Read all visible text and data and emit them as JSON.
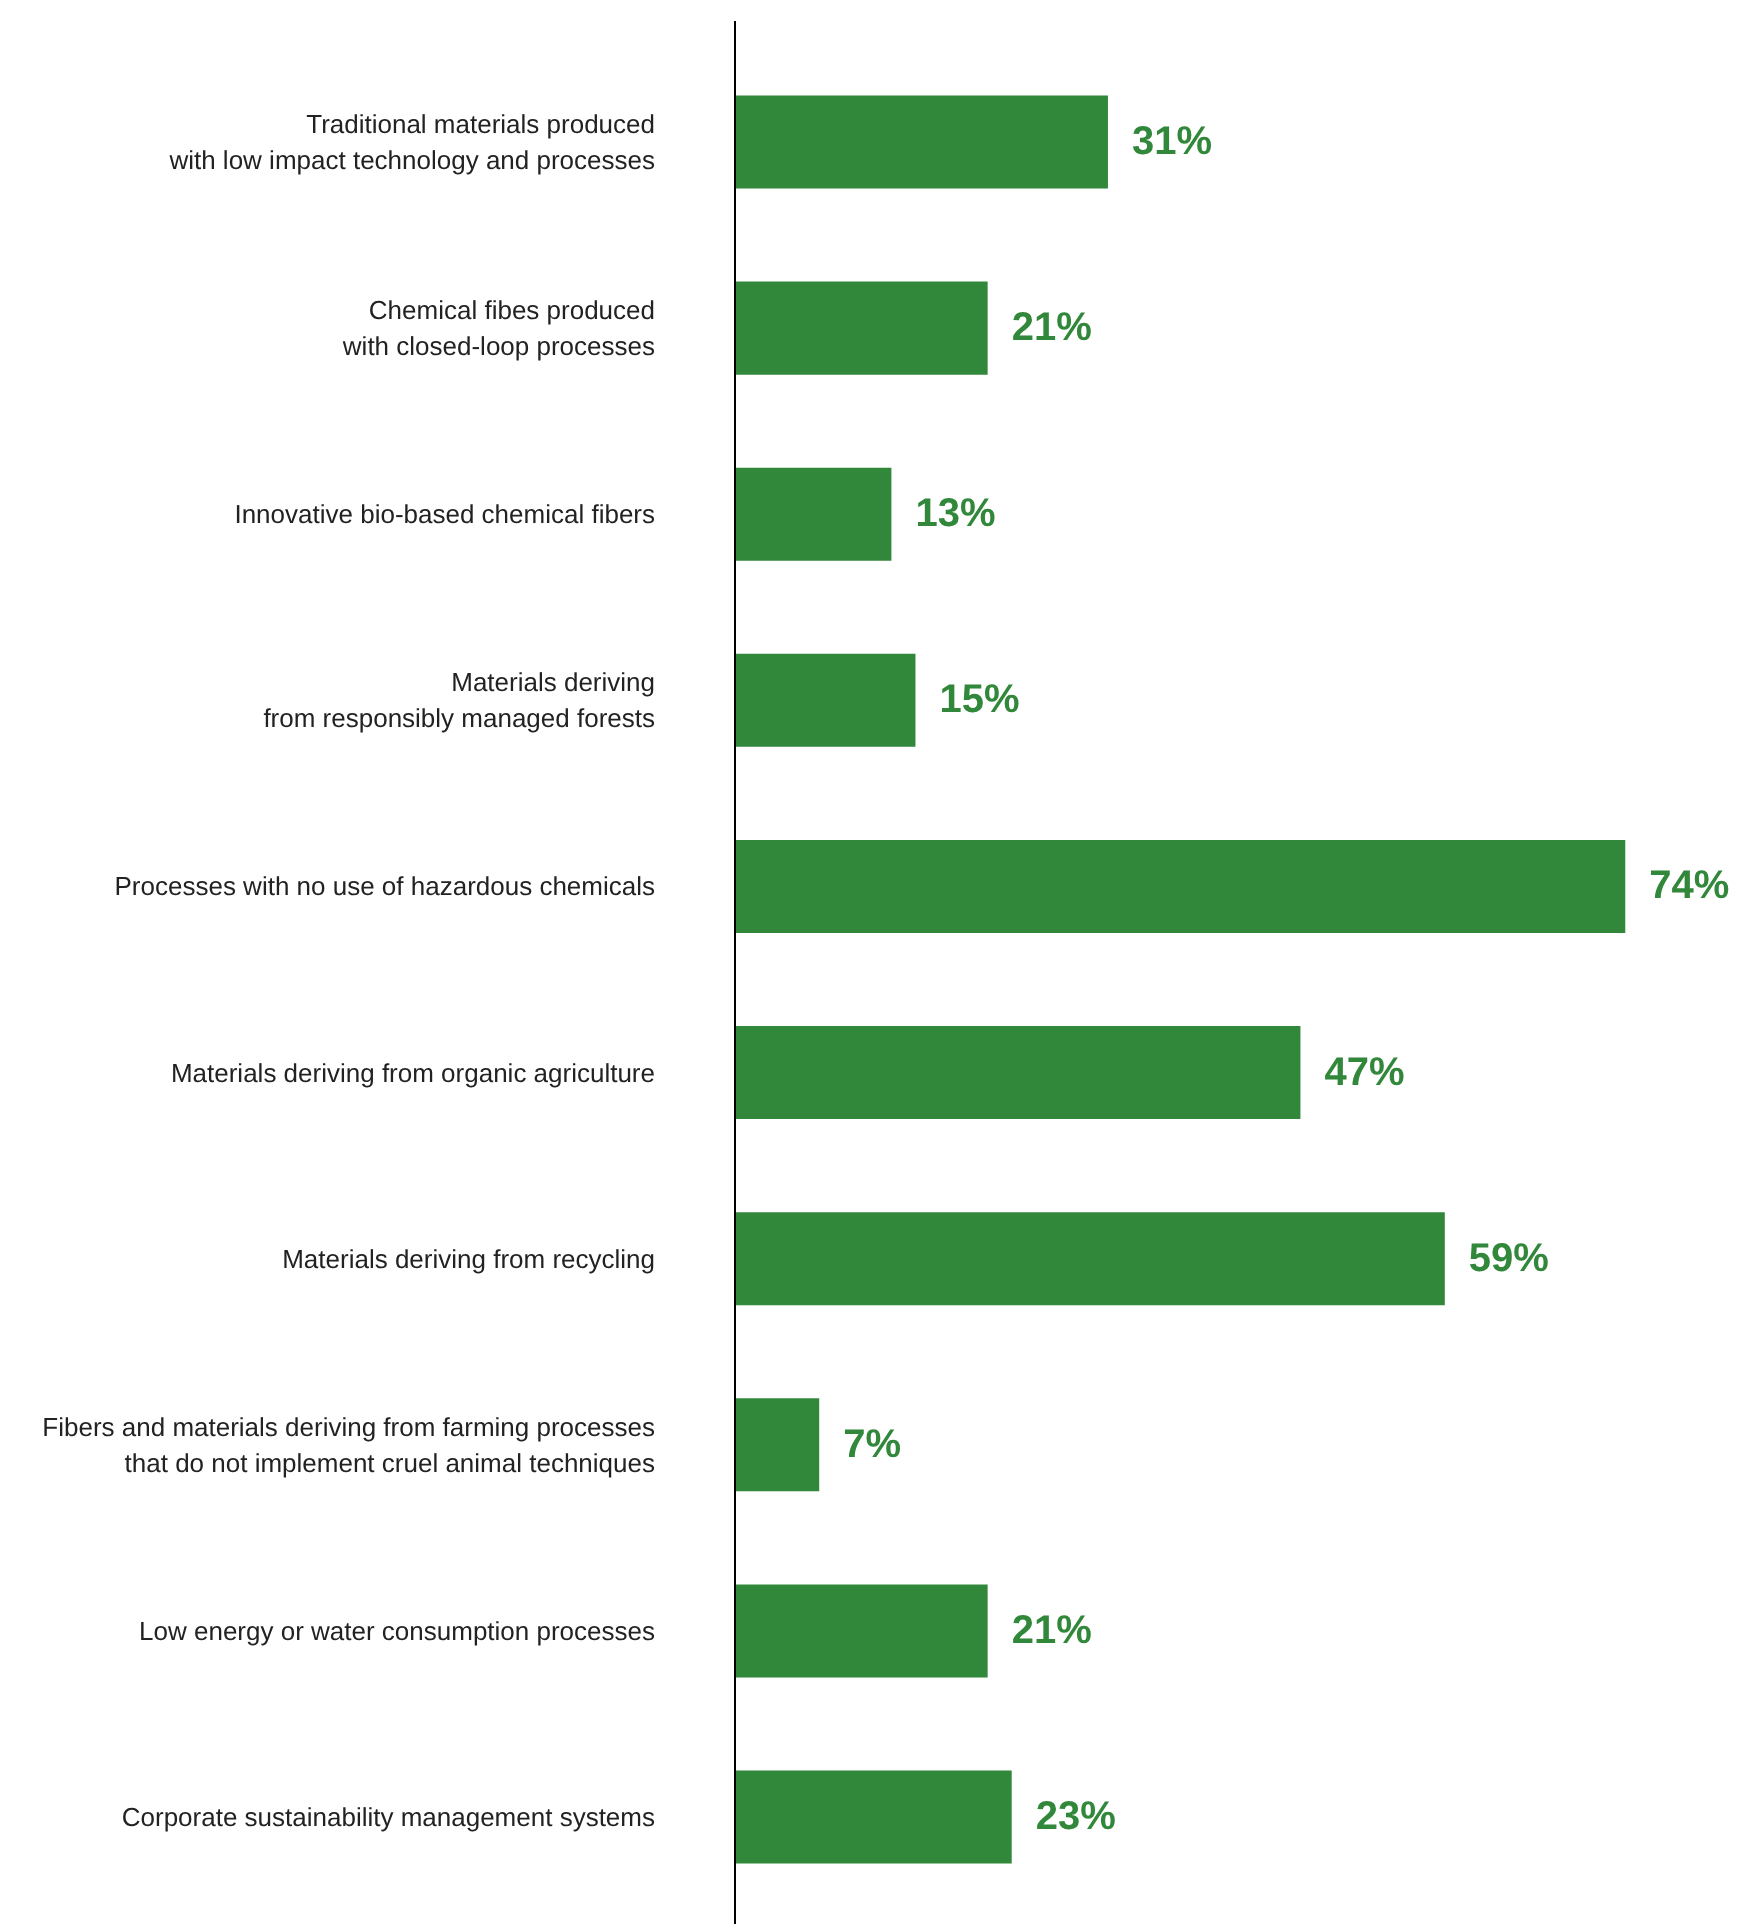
{
  "chart_data": {
    "type": "bar",
    "orientation": "horizontal",
    "categories": [
      "Traditional materials produced\nwith low impact technology and processes",
      "Chemical fibes produced\nwith closed-loop processes",
      "Innovative bio-based chemical fibers",
      "Materials deriving\nfrom responsibly managed forests",
      "Processes with no use of hazardous chemicals",
      "Materials deriving from organic agriculture",
      "Materials deriving from recycling",
      "Fibers and materials deriving from farming processes\nthat do not implement cruel animal techniques",
      "Low energy or water consumption processes",
      "Corporate sustainability management systems"
    ],
    "values": [
      31,
      21,
      13,
      15,
      74,
      47,
      59,
      7,
      21,
      23
    ],
    "value_labels": [
      "31%",
      "21%",
      "13%",
      "15%",
      "74%",
      "47%",
      "59%",
      "7%",
      "21%",
      "23%"
    ],
    "color": "#31873a"
  }
}
